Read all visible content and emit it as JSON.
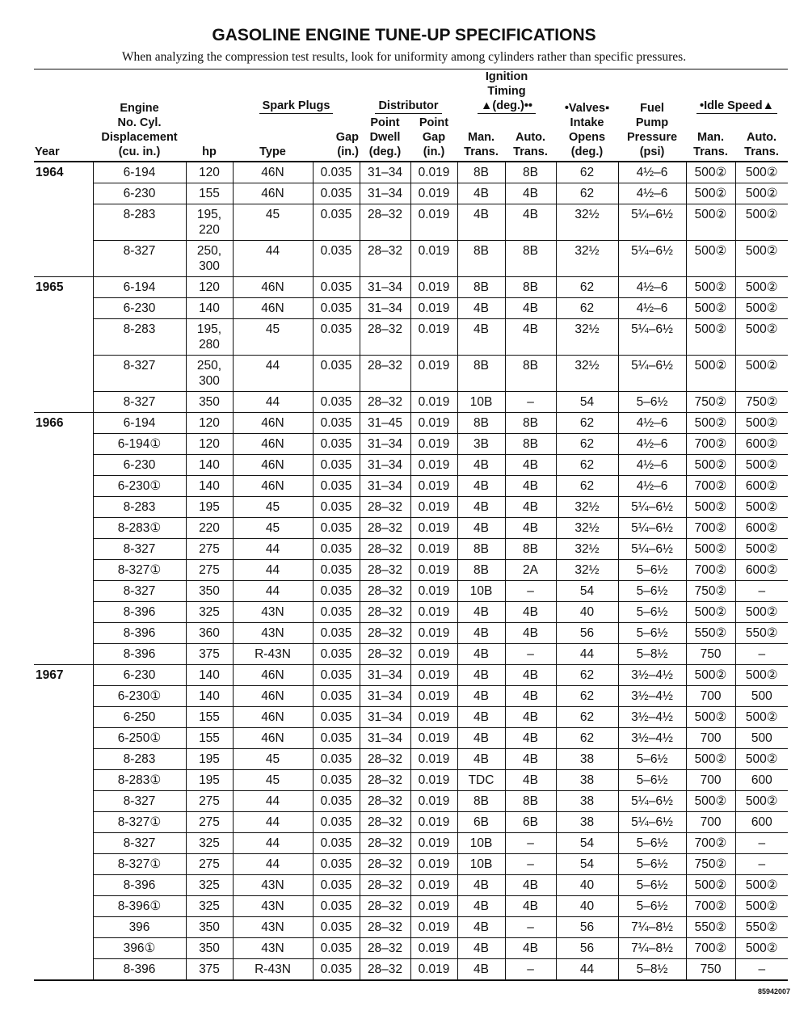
{
  "header": {
    "title": "GASOLINE ENGINE TUNE-UP SPECIFICATIONS",
    "subtitle": "When analyzing the compression test results, look for uniformity among cylinders rather than specific pressures."
  },
  "table": {
    "group_headers": [
      "Spark Plugs",
      "Distributor",
      "Ignition\nTiming\n▲(deg.)••",
      "•Idle Speed▲"
    ],
    "columns": [
      "Year",
      "Engine\nNo. Cyl.\nDisplacement\n(cu. in.)",
      "hp",
      "Type",
      "Gap\n(in.)",
      "Point\nDwell\n(deg.)",
      "Point\nGap\n(in.)",
      "Man.\nTrans.",
      "Auto.\nTrans.",
      "•Valves▪\nIntake\nOpens\n(deg.)",
      "Fuel\nPump\nPressure\n(psi)",
      "Man.\nTrans.",
      "Auto.\nTrans."
    ],
    "groups": [
      {
        "year": "1964",
        "rows": [
          [
            "6-194",
            "120",
            "46N",
            "0.035",
            "31–34",
            "0.019",
            "8B",
            "8B",
            "62",
            "4½–6",
            "500②",
            "500②"
          ],
          [
            "6-230",
            "155",
            "46N",
            "0.035",
            "31–34",
            "0.019",
            "4B",
            "4B",
            "62",
            "4½–6",
            "500②",
            "500②"
          ],
          [
            "8-283",
            "195,\n220",
            "45",
            "0.035",
            "28–32",
            "0.019",
            "4B",
            "4B",
            "32½",
            "5¼–6½",
            "500②",
            "500②"
          ],
          [
            "8-327",
            "250,\n300",
            "44",
            "0.035",
            "28–32",
            "0.019",
            "8B",
            "8B",
            "32½",
            "5¼–6½",
            "500②",
            "500②"
          ]
        ]
      },
      {
        "year": "1965",
        "rows": [
          [
            "6-194",
            "120",
            "46N",
            "0.035",
            "31–34",
            "0.019",
            "8B",
            "8B",
            "62",
            "4½–6",
            "500②",
            "500②"
          ],
          [
            "6-230",
            "140",
            "46N",
            "0.035",
            "31–34",
            "0.019",
            "4B",
            "4B",
            "62",
            "4½–6",
            "500②",
            "500②"
          ],
          [
            "8-283",
            "195,\n280",
            "45",
            "0.035",
            "28–32",
            "0.019",
            "4B",
            "4B",
            "32½",
            "5¼–6½",
            "500②",
            "500②"
          ],
          [
            "8-327",
            "250,\n300",
            "44",
            "0.035",
            "28–32",
            "0.019",
            "8B",
            "8B",
            "32½",
            "5¼–6½",
            "500②",
            "500②"
          ],
          [
            "8-327",
            "350",
            "44",
            "0.035",
            "28–32",
            "0.019",
            "10B",
            "–",
            "54",
            "5–6½",
            "750②",
            "750②"
          ]
        ]
      },
      {
        "year": "1966",
        "rows": [
          [
            "6-194",
            "120",
            "46N",
            "0.035",
            "31–45",
            "0.019",
            "8B",
            "8B",
            "62",
            "4½–6",
            "500②",
            "500②"
          ],
          [
            "6-194①",
            "120",
            "46N",
            "0.035",
            "31–34",
            "0.019",
            "3B",
            "8B",
            "62",
            "4½–6",
            "700②",
            "600②"
          ],
          [
            "6-230",
            "140",
            "46N",
            "0.035",
            "31–34",
            "0.019",
            "4B",
            "4B",
            "62",
            "4½–6",
            "500②",
            "500②"
          ],
          [
            "6-230①",
            "140",
            "46N",
            "0.035",
            "31–34",
            "0.019",
            "4B",
            "4B",
            "62",
            "4½–6",
            "700②",
            "600②"
          ],
          [
            "8-283",
            "195",
            "45",
            "0.035",
            "28–32",
            "0.019",
            "4B",
            "4B",
            "32½",
            "5¼–6½",
            "500②",
            "500②"
          ],
          [
            "8-283①",
            "220",
            "45",
            "0.035",
            "28–32",
            "0.019",
            "4B",
            "4B",
            "32½",
            "5¼–6½",
            "700②",
            "600②"
          ],
          [
            "8-327",
            "275",
            "44",
            "0.035",
            "28–32",
            "0.019",
            "8B",
            "8B",
            "32½",
            "5¼–6½",
            "500②",
            "500②"
          ],
          [
            "8-327①",
            "275",
            "44",
            "0.035",
            "28–32",
            "0.019",
            "8B",
            "2A",
            "32½",
            "5–6½",
            "700②",
            "600②"
          ],
          [
            "8-327",
            "350",
            "44",
            "0.035",
            "28–32",
            "0.019",
            "10B",
            "–",
            "54",
            "5–6½",
            "750②",
            "–"
          ],
          [
            "8-396",
            "325",
            "43N",
            "0.035",
            "28–32",
            "0.019",
            "4B",
            "4B",
            "40",
            "5–6½",
            "500②",
            "500②"
          ],
          [
            "8-396",
            "360",
            "43N",
            "0.035",
            "28–32",
            "0.019",
            "4B",
            "4B",
            "56",
            "5–6½",
            "550②",
            "550②"
          ],
          [
            "8-396",
            "375",
            "R-43N",
            "0.035",
            "28–32",
            "0.019",
            "4B",
            "–",
            "44",
            "5–8½",
            "750",
            "–"
          ]
        ]
      },
      {
        "year": "1967",
        "rows": [
          [
            "6-230",
            "140",
            "46N",
            "0.035",
            "31–34",
            "0.019",
            "4B",
            "4B",
            "62",
            "3½–4½",
            "500②",
            "500②"
          ],
          [
            "6-230①",
            "140",
            "46N",
            "0.035",
            "31–34",
            "0.019",
            "4B",
            "4B",
            "62",
            "3½–4½",
            "700",
            "500"
          ],
          [
            "6-250",
            "155",
            "46N",
            "0.035",
            "31–34",
            "0.019",
            "4B",
            "4B",
            "62",
            "3½–4½",
            "500②",
            "500②"
          ],
          [
            "6-250①",
            "155",
            "46N",
            "0.035",
            "31–34",
            "0.019",
            "4B",
            "4B",
            "62",
            "3½–4½",
            "700",
            "500"
          ],
          [
            "8-283",
            "195",
            "45",
            "0.035",
            "28–32",
            "0.019",
            "4B",
            "4B",
            "38",
            "5–6½",
            "500②",
            "500②"
          ],
          [
            "8-283①",
            "195",
            "45",
            "0.035",
            "28–32",
            "0.019",
            "TDC",
            "4B",
            "38",
            "5–6½",
            "700",
            "600"
          ],
          [
            "8-327",
            "275",
            "44",
            "0.035",
            "28–32",
            "0.019",
            "8B",
            "8B",
            "38",
            "5¼–6½",
            "500②",
            "500②"
          ],
          [
            "8-327①",
            "275",
            "44",
            "0.035",
            "28–32",
            "0.019",
            "6B",
            "6B",
            "38",
            "5¼–6½",
            "700",
            "600"
          ],
          [
            "8-327",
            "325",
            "44",
            "0.035",
            "28–32",
            "0.019",
            "10B",
            "–",
            "54",
            "5–6½",
            "700②",
            "–"
          ],
          [
            "8-327①",
            "275",
            "44",
            "0.035",
            "28–32",
            "0.019",
            "10B",
            "–",
            "54",
            "5–6½",
            "750②",
            "–"
          ],
          [
            "8-396",
            "325",
            "43N",
            "0.035",
            "28–32",
            "0.019",
            "4B",
            "4B",
            "40",
            "5–6½",
            "500②",
            "500②"
          ],
          [
            "8-396①",
            "325",
            "43N",
            "0.035",
            "28–32",
            "0.019",
            "4B",
            "4B",
            "40",
            "5–6½",
            "700②",
            "500②"
          ],
          [
            "396",
            "350",
            "43N",
            "0.035",
            "28–32",
            "0.019",
            "4B",
            "–",
            "56",
            "7¼–8½",
            "550②",
            "550②"
          ],
          [
            "396①",
            "350",
            "43N",
            "0.035",
            "28–32",
            "0.019",
            "4B",
            "4B",
            "56",
            "7¼–8½",
            "700②",
            "500②"
          ],
          [
            "8-396",
            "375",
            "R-43N",
            "0.035",
            "28–32",
            "0.019",
            "4B",
            "–",
            "44",
            "5–8½",
            "750",
            "–"
          ]
        ]
      }
    ]
  },
  "footer": {
    "code": "85942007"
  }
}
